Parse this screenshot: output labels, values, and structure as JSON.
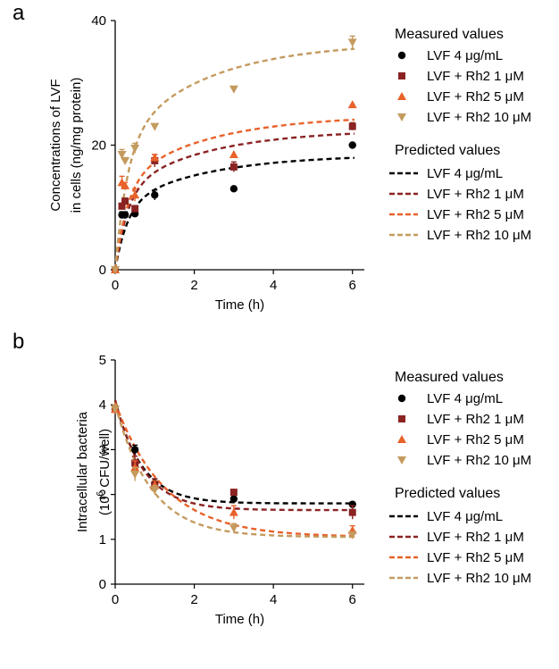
{
  "chart_data": [
    {
      "panel_label": "a",
      "type": "scatter",
      "title": "",
      "xlabel": "Time (h)",
      "ylabel_lines": [
        "Concentrations of LVF",
        "in cells (ng/mg protein)"
      ],
      "xlim": [
        0,
        6.3
      ],
      "ylim": [
        0,
        40
      ],
      "xticks": [
        0,
        2,
        4,
        6
      ],
      "yticks": [
        0,
        20,
        40
      ],
      "legend": {
        "measured_title": "Measured values",
        "predicted_title": "Predicted values",
        "labels": [
          "LVF 4 μg/mL",
          "LVF + Rh2  1  μM",
          "LVF + Rh2  5  μM",
          "LVF + Rh2 10 μM"
        ],
        "colors": [
          "#000000",
          "#8b2323",
          "#e8622a",
          "#c49a5e"
        ],
        "markers": [
          "circle",
          "square",
          "triangle-up",
          "triangle-down"
        ]
      },
      "measured": [
        {
          "name": "LVF 4 μg/mL",
          "x": [
            0,
            0.17,
            0.25,
            0.5,
            1,
            3,
            6
          ],
          "y": [
            0,
            8.8,
            8.8,
            9.0,
            12.0,
            13.0,
            20.0
          ],
          "err": [
            0,
            0.5,
            0.5,
            0.5,
            0.8,
            0,
            0
          ]
        },
        {
          "name": "LVF + Rh2  1  μM",
          "x": [
            0,
            0.17,
            0.25,
            0.5,
            1,
            3,
            6
          ],
          "y": [
            0,
            10.2,
            11.0,
            9.8,
            17.5,
            16.5,
            23.0
          ],
          "err": [
            0,
            0.5,
            0.5,
            0.5,
            1.0,
            0.8,
            0.6
          ]
        },
        {
          "name": "LVF + Rh2  5  μM",
          "x": [
            0,
            0.17,
            0.25,
            0.5,
            1,
            3,
            6
          ],
          "y": [
            0,
            14.0,
            13.5,
            12.0,
            18.0,
            18.5,
            26.5
          ],
          "err": [
            0,
            1.0,
            0.5,
            1.0,
            0.5,
            0,
            0
          ]
        },
        {
          "name": "LVF + Rh2 10 μM",
          "x": [
            0,
            0.17,
            0.25,
            0.5,
            1,
            3,
            6
          ],
          "y": [
            0,
            18.5,
            17.5,
            19.5,
            23.0,
            29.0,
            36.5
          ],
          "err": [
            0,
            0.8,
            0.5,
            0.8,
            0,
            0,
            1.0
          ]
        }
      ],
      "predicted": [
        {
          "name": "LVF 4 μg/mL",
          "cmax": 18.5,
          "k": 1.2,
          "tmid": 0.5
        },
        {
          "name": "LVF + Rh2  1  μM",
          "cmax": 22.5,
          "k": 1.2,
          "tmid": 0.5
        },
        {
          "name": "LVF + Rh2  5  μM",
          "cmax": 24.8,
          "k": 1.2,
          "tmid": 0.5
        },
        {
          "name": "LVF + Rh2 10 μM",
          "cmax": 36.5,
          "k": 1.2,
          "tmid": 0.5
        }
      ]
    },
    {
      "panel_label": "b",
      "type": "scatter",
      "title": "",
      "xlabel": "Time (h)",
      "ylabel_lines": [
        "Intracellular bacteria"
      ],
      "ylabel_prefix": "(10",
      "ylabel_sup": "6",
      "ylabel_suffix": " CFU/well)",
      "xlim": [
        0,
        6.3
      ],
      "ylim": [
        0,
        5
      ],
      "xticks": [
        0,
        2,
        4,
        6
      ],
      "yticks": [
        0,
        1,
        2,
        3,
        4,
        5
      ],
      "legend": {
        "measured_title": "Measured values",
        "predicted_title": "Predicted values",
        "labels": [
          "LVF 4 μg/mL",
          "LVF + Rh2  1  μM",
          "LVF + Rh2  5  μM",
          "LVF + Rh2 10 μM"
        ],
        "colors": [
          "#000000",
          "#8b2323",
          "#e8622a",
          "#c49a5e"
        ],
        "markers": [
          "circle",
          "square",
          "triangle-up",
          "triangle-down"
        ]
      },
      "measured": [
        {
          "name": "LVF 4 μg/mL",
          "x": [
            0,
            0.5,
            1,
            3,
            6
          ],
          "y": [
            3.9,
            3.0,
            2.25,
            1.9,
            1.78
          ],
          "err": [
            0.1,
            0.1,
            0.1,
            0.05,
            0
          ]
        },
        {
          "name": "LVF + Rh2  1  μM",
          "x": [
            0,
            0.5,
            1,
            3,
            6
          ],
          "y": [
            3.9,
            2.7,
            2.2,
            2.05,
            1.6
          ],
          "err": [
            0.1,
            0.15,
            0.15,
            0.05,
            0.15
          ]
        },
        {
          "name": "LVF + Rh2  5  μM",
          "x": [
            0,
            0.5,
            1,
            3,
            6
          ],
          "y": [
            3.9,
            2.6,
            2.2,
            1.6,
            1.2
          ],
          "err": [
            0.1,
            0.15,
            0.1,
            0.15,
            0.1
          ]
        },
        {
          "name": "LVF + Rh2 10 μM",
          "x": [
            0,
            0.5,
            1,
            3,
            6
          ],
          "y": [
            3.9,
            2.45,
            2.1,
            1.25,
            1.1
          ],
          "err": [
            0.1,
            0.15,
            0.1,
            0.1,
            0.05
          ]
        }
      ],
      "predicted": [
        {
          "name": "LVF 4 μg/mL",
          "y0": 4.1,
          "yinf": 1.8,
          "k": 1.5
        },
        {
          "name": "LVF + Rh2  1  μM",
          "y0": 4.1,
          "yinf": 1.65,
          "k": 1.4
        },
        {
          "name": "LVF + Rh2  5  μM",
          "y0": 4.05,
          "yinf": 1.05,
          "k": 0.8
        },
        {
          "name": "LVF + Rh2 10 μM",
          "y0": 4.0,
          "yinf": 1.05,
          "k": 1.1
        }
      ]
    }
  ]
}
